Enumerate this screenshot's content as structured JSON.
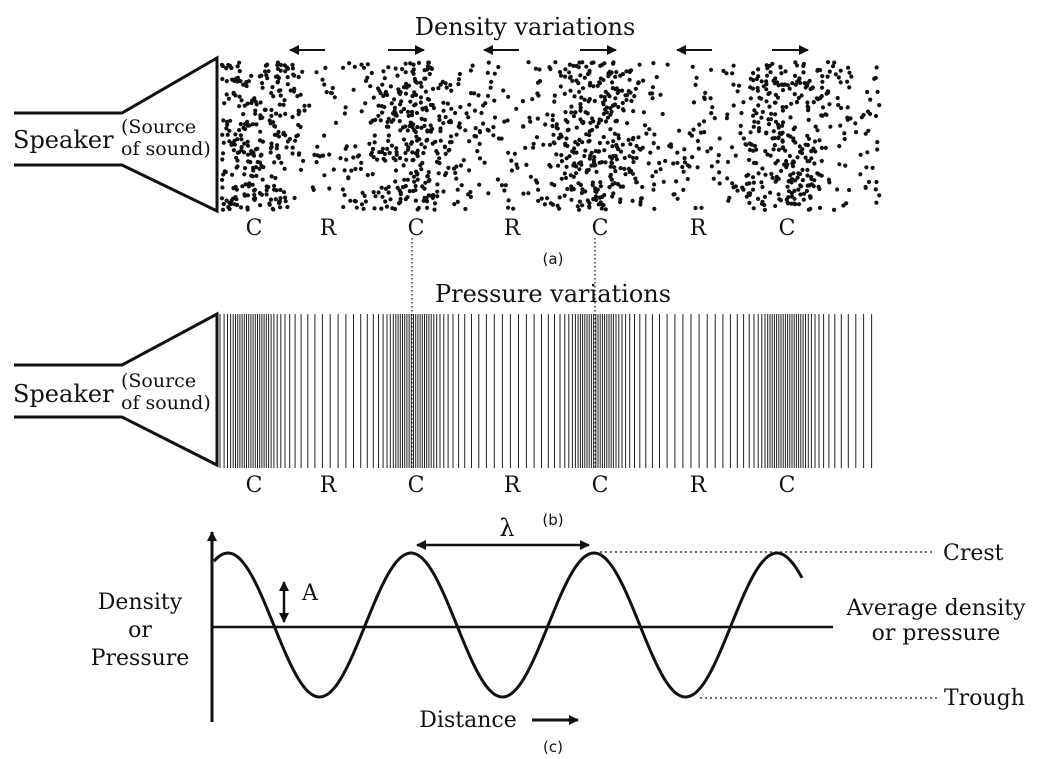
{
  "panel_a": {
    "title": "Density variations",
    "speaker_label": "Speaker",
    "source_line1": "(Source",
    "source_line2": "of sound)",
    "zones": [
      "C",
      "R",
      "C",
      "R",
      "C",
      "R",
      "C"
    ],
    "caption": "(a)"
  },
  "panel_b": {
    "title": "Pressure variations",
    "speaker_label": "Speaker",
    "source_line1": "(Source",
    "source_line2": "of sound)",
    "zones": [
      "C",
      "R",
      "C",
      "R",
      "C",
      "R",
      "C"
    ],
    "caption": "(b)"
  },
  "panel_c": {
    "ylabel_line1": "Density",
    "ylabel_line2": "or",
    "ylabel_line3": "Pressure",
    "xlabel": "Distance",
    "wavelength_symbol": "λ",
    "amplitude_symbol": "A",
    "crest_label": "Crest",
    "trough_label": "Trough",
    "average_line1": "Average density",
    "average_line2": "or pressure",
    "caption": "(c)"
  },
  "colors": {
    "ink": "#111111",
    "background": "#ffffff"
  }
}
